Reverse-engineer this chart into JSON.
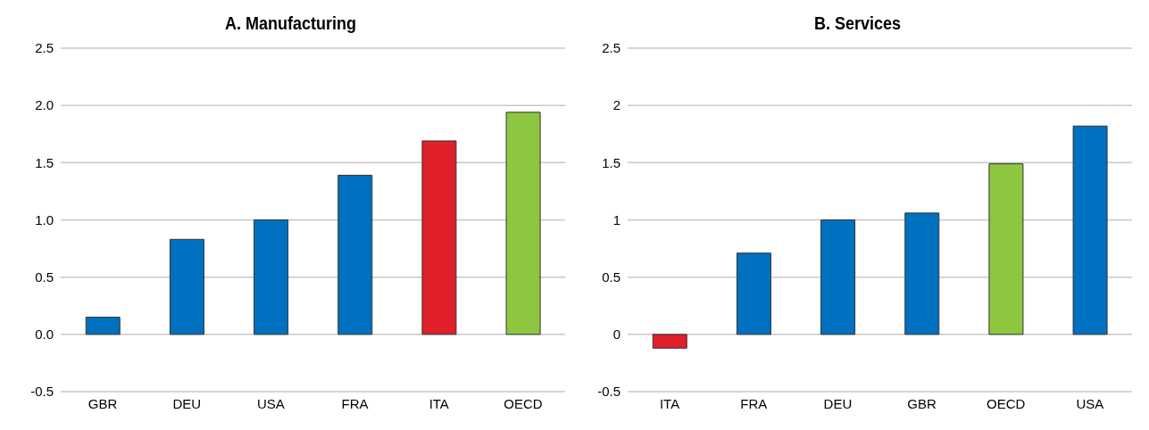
{
  "chart_data": [
    {
      "type": "bar",
      "title": "A. Manufacturing",
      "categories": [
        "GBR",
        "DEU",
        "USA",
        "FRA",
        "ITA",
        "OECD"
      ],
      "values": [
        0.15,
        0.83,
        1.0,
        1.39,
        1.69,
        1.94
      ],
      "colors": [
        "#0070c0",
        "#0070c0",
        "#0070c0",
        "#0070c0",
        "#e0202a",
        "#8dc63f"
      ],
      "ylim": [
        -0.5,
        2.5
      ],
      "yticks": [
        {
          "value": -0.5,
          "label": "-0.5"
        },
        {
          "value": 0,
          "label": "0.0"
        },
        {
          "value": 0.5,
          "label": "0.5"
        },
        {
          "value": 1,
          "label": "1.0"
        },
        {
          "value": 1.5,
          "label": "1.5"
        },
        {
          "value": 2,
          "label": "2.0"
        },
        {
          "value": 2.5,
          "label": "2.5"
        }
      ],
      "grid": "y"
    },
    {
      "type": "bar",
      "title": "B. Services",
      "categories": [
        "ITA",
        "FRA",
        "DEU",
        "GBR",
        "OECD",
        "USA"
      ],
      "values": [
        -0.12,
        0.71,
        1.0,
        1.06,
        1.49,
        1.82
      ],
      "colors": [
        "#e0202a",
        "#0070c0",
        "#0070c0",
        "#0070c0",
        "#8dc63f",
        "#0070c0"
      ],
      "ylim": [
        -0.5,
        2.5
      ],
      "yticks": [
        -0.5,
        0,
        0.5,
        1,
        1.5,
        2,
        2.5
      ],
      "grid": "y"
    }
  ]
}
